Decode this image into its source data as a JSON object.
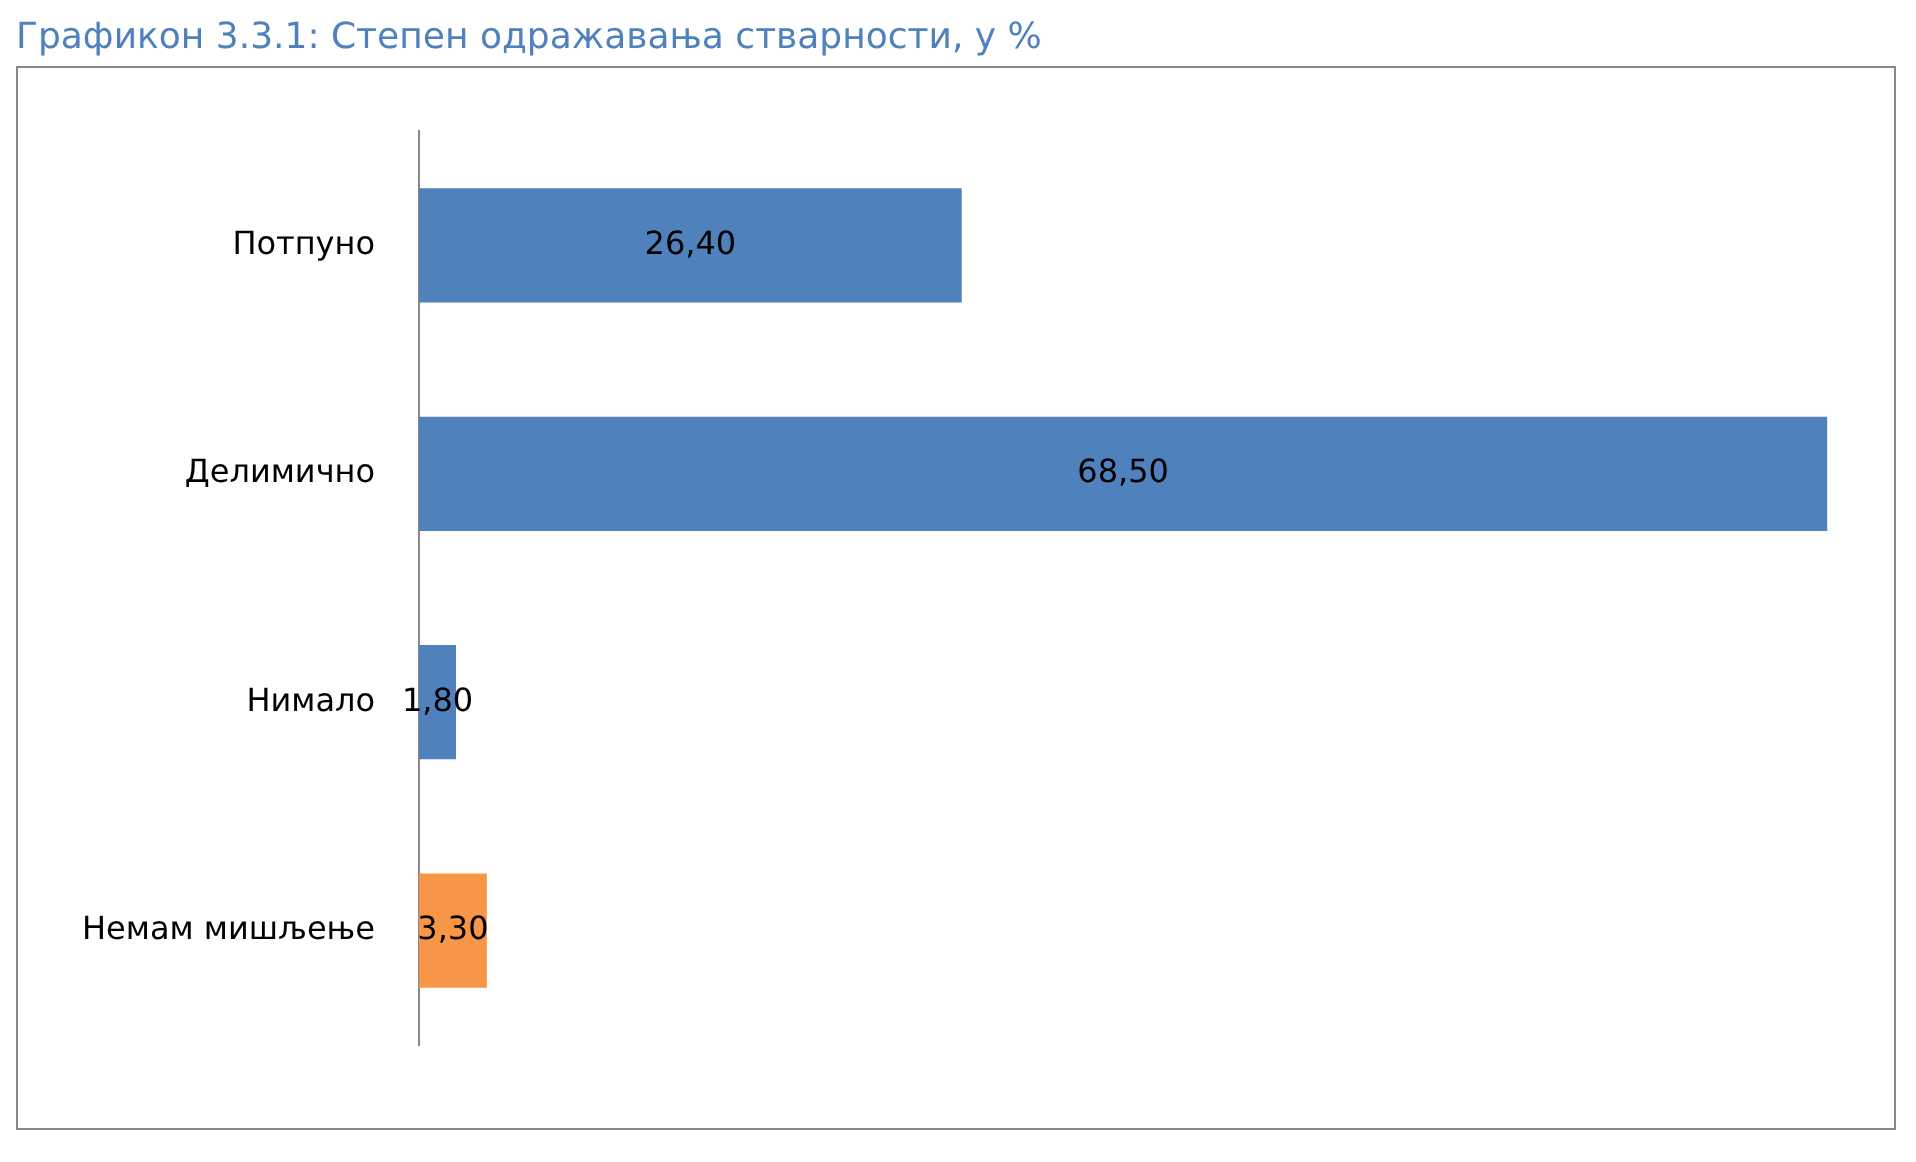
{
  "chart_data": {
    "type": "bar",
    "orientation": "horizontal",
    "title": "Графикон 3.3.1: Степен одражавања стварности, у %",
    "categories": [
      "Потпуно",
      "Делимично",
      "Нимало",
      "Немам мишљење"
    ],
    "values": [
      26.4,
      68.5,
      1.8,
      3.3
    ],
    "colors": [
      "#4f81bd",
      "#4f81bd",
      "#4f81bd",
      "#f79646"
    ],
    "value_labels": [
      "26,40",
      "68,50",
      "1,80",
      "3,30"
    ],
    "tick_labels": "y",
    "grid": false,
    "legend": false
  }
}
